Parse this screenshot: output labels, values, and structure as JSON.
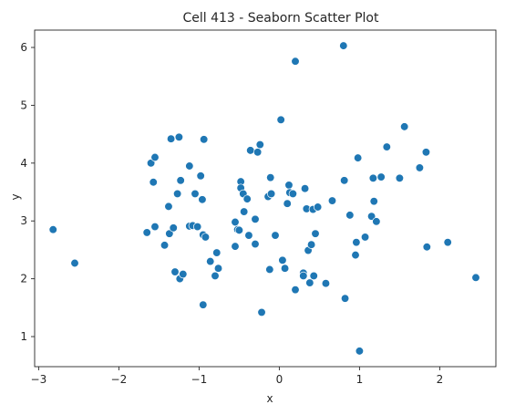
{
  "chart_data": {
    "type": "scatter",
    "title": "Cell 413 - Seaborn Scatter Plot",
    "xlabel": "x",
    "ylabel": "y",
    "xlim": [
      -3.05,
      2.7
    ],
    "ylim": [
      0.48,
      6.3
    ],
    "xticks": [
      "−3",
      "−2",
      "−1",
      "0",
      "1",
      "2"
    ],
    "xtick_values": [
      -3,
      -2,
      -1,
      0,
      1,
      2
    ],
    "yticks": [
      "1",
      "2",
      "3",
      "4",
      "5",
      "6"
    ],
    "ytick_values": [
      1,
      2,
      3,
      4,
      5,
      6
    ],
    "grid": false,
    "point_color": "#1f77b4",
    "points": [
      {
        "x": -2.82,
        "y": 2.85
      },
      {
        "x": -2.55,
        "y": 2.27
      },
      {
        "x": -1.65,
        "y": 2.8
      },
      {
        "x": -1.6,
        "y": 4.0
      },
      {
        "x": -1.57,
        "y": 3.67
      },
      {
        "x": -1.55,
        "y": 4.1
      },
      {
        "x": -1.55,
        "y": 2.9
      },
      {
        "x": -1.43,
        "y": 2.58
      },
      {
        "x": -1.38,
        "y": 3.25
      },
      {
        "x": -1.37,
        "y": 2.78
      },
      {
        "x": -1.35,
        "y": 4.42
      },
      {
        "x": -1.32,
        "y": 2.88
      },
      {
        "x": -1.3,
        "y": 2.12
      },
      {
        "x": -1.27,
        "y": 3.47
      },
      {
        "x": -1.25,
        "y": 4.45
      },
      {
        "x": -1.24,
        "y": 2.0
      },
      {
        "x": -1.23,
        "y": 3.7
      },
      {
        "x": -1.2,
        "y": 2.08
      },
      {
        "x": -1.12,
        "y": 3.95
      },
      {
        "x": -1.12,
        "y": 2.91
      },
      {
        "x": -1.08,
        "y": 2.92
      },
      {
        "x": -1.05,
        "y": 3.47
      },
      {
        "x": -1.02,
        "y": 2.9
      },
      {
        "x": -0.98,
        "y": 3.78
      },
      {
        "x": -0.96,
        "y": 3.37
      },
      {
        "x": -0.95,
        "y": 2.76
      },
      {
        "x": -0.95,
        "y": 1.55
      },
      {
        "x": -0.94,
        "y": 4.41
      },
      {
        "x": -0.92,
        "y": 2.72
      },
      {
        "x": -0.86,
        "y": 2.3
      },
      {
        "x": -0.8,
        "y": 2.05
      },
      {
        "x": -0.78,
        "y": 2.45
      },
      {
        "x": -0.76,
        "y": 2.18
      },
      {
        "x": -0.55,
        "y": 2.98
      },
      {
        "x": -0.55,
        "y": 2.56
      },
      {
        "x": -0.52,
        "y": 2.85
      },
      {
        "x": -0.5,
        "y": 2.84
      },
      {
        "x": -0.48,
        "y": 3.68
      },
      {
        "x": -0.48,
        "y": 3.57
      },
      {
        "x": -0.45,
        "y": 3.47
      },
      {
        "x": -0.44,
        "y": 3.16
      },
      {
        "x": -0.4,
        "y": 3.38
      },
      {
        "x": -0.38,
        "y": 2.75
      },
      {
        "x": -0.36,
        "y": 4.22
      },
      {
        "x": -0.3,
        "y": 3.03
      },
      {
        "x": -0.3,
        "y": 2.6
      },
      {
        "x": -0.27,
        "y": 4.19
      },
      {
        "x": -0.24,
        "y": 4.32
      },
      {
        "x": -0.22,
        "y": 1.42
      },
      {
        "x": -0.14,
        "y": 3.42
      },
      {
        "x": -0.12,
        "y": 2.16
      },
      {
        "x": -0.11,
        "y": 3.75
      },
      {
        "x": -0.1,
        "y": 3.47
      },
      {
        "x": -0.05,
        "y": 2.75
      },
      {
        "x": 0.02,
        "y": 4.75
      },
      {
        "x": 0.04,
        "y": 2.32
      },
      {
        "x": 0.07,
        "y": 2.18
      },
      {
        "x": 0.1,
        "y": 3.3
      },
      {
        "x": 0.12,
        "y": 3.62
      },
      {
        "x": 0.13,
        "y": 3.49
      },
      {
        "x": 0.17,
        "y": 3.47
      },
      {
        "x": 0.2,
        "y": 5.76
      },
      {
        "x": 0.2,
        "y": 1.81
      },
      {
        "x": 0.3,
        "y": 2.1
      },
      {
        "x": 0.3,
        "y": 2.05
      },
      {
        "x": 0.32,
        "y": 3.56
      },
      {
        "x": 0.34,
        "y": 3.21
      },
      {
        "x": 0.36,
        "y": 2.49
      },
      {
        "x": 0.38,
        "y": 1.93
      },
      {
        "x": 0.4,
        "y": 2.59
      },
      {
        "x": 0.42,
        "y": 3.2
      },
      {
        "x": 0.43,
        "y": 2.05
      },
      {
        "x": 0.45,
        "y": 2.78
      },
      {
        "x": 0.48,
        "y": 3.24
      },
      {
        "x": 0.58,
        "y": 1.92
      },
      {
        "x": 0.66,
        "y": 3.35
      },
      {
        "x": 0.8,
        "y": 6.03
      },
      {
        "x": 0.81,
        "y": 3.7
      },
      {
        "x": 0.82,
        "y": 1.66
      },
      {
        "x": 0.88,
        "y": 3.1
      },
      {
        "x": 0.95,
        "y": 2.41
      },
      {
        "x": 0.96,
        "y": 2.63
      },
      {
        "x": 0.98,
        "y": 4.09
      },
      {
        "x": 1.0,
        "y": 0.75
      },
      {
        "x": 1.07,
        "y": 2.72
      },
      {
        "x": 1.15,
        "y": 3.08
      },
      {
        "x": 1.17,
        "y": 3.74
      },
      {
        "x": 1.18,
        "y": 3.34
      },
      {
        "x": 1.21,
        "y": 2.99
      },
      {
        "x": 1.27,
        "y": 3.76
      },
      {
        "x": 1.34,
        "y": 4.28
      },
      {
        "x": 1.5,
        "y": 3.74
      },
      {
        "x": 1.56,
        "y": 4.63
      },
      {
        "x": 1.75,
        "y": 3.92
      },
      {
        "x": 1.83,
        "y": 4.19
      },
      {
        "x": 1.84,
        "y": 2.55
      },
      {
        "x": 2.1,
        "y": 2.63
      },
      {
        "x": 2.45,
        "y": 2.02
      }
    ]
  }
}
